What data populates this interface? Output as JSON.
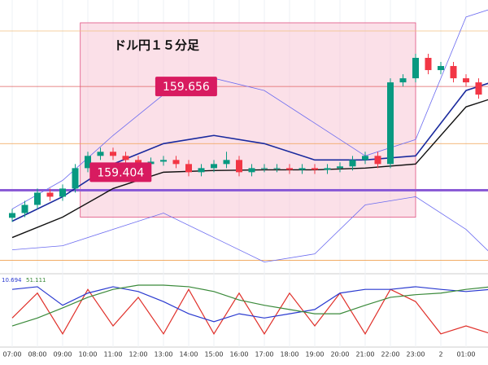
{
  "chart_data": {
    "type": "candlestick",
    "title": "ドル円１５分足",
    "categories": [
      "07:00",
      "08:00",
      "09:00",
      "10:00",
      "11:00",
      "12:00",
      "13:00",
      "14:00",
      "15:00",
      "16:00",
      "17:00",
      "18:00",
      "19:00",
      "20:00",
      "21:00",
      "22:00",
      "23:00",
      "2",
      "01:00"
    ],
    "ylim": [
      159.12,
      159.91
    ],
    "up_color": "#089981",
    "down_color": "#f23645",
    "candles": {
      "x": [
        0,
        0.5,
        1,
        1.5,
        2,
        2.5,
        3,
        3.5,
        4,
        4.5,
        5,
        5.5,
        6,
        6.5,
        7,
        7.5,
        8,
        8.5,
        9,
        9.5,
        10,
        10.5,
        11,
        11.5,
        12,
        12.5,
        13,
        13.5,
        14,
        14.5,
        15,
        15.5,
        16,
        16.5,
        17,
        17.5,
        18,
        18.5
      ],
      "open": [
        159.27,
        159.284,
        159.308,
        159.344,
        159.332,
        159.356,
        159.416,
        159.452,
        159.464,
        159.452,
        159.44,
        159.428,
        159.435,
        159.44,
        159.428,
        159.404,
        159.416,
        159.428,
        159.44,
        159.404,
        159.416,
        159.416,
        159.416,
        159.411,
        159.416,
        159.411,
        159.416,
        159.421,
        159.44,
        159.452,
        159.428,
        159.668,
        159.68,
        159.74,
        159.704,
        159.716,
        159.68,
        159.668
      ],
      "high": [
        159.296,
        159.32,
        159.356,
        159.356,
        159.368,
        159.428,
        159.464,
        159.476,
        159.476,
        159.464,
        159.452,
        159.447,
        159.452,
        159.452,
        159.44,
        159.428,
        159.44,
        159.464,
        159.452,
        159.428,
        159.428,
        159.428,
        159.428,
        159.428,
        159.428,
        159.428,
        159.433,
        159.452,
        159.464,
        159.464,
        159.68,
        159.692,
        159.752,
        159.752,
        159.728,
        159.728,
        159.692,
        159.68
      ],
      "low": [
        159.258,
        159.272,
        159.296,
        159.32,
        159.32,
        159.344,
        159.404,
        159.44,
        159.44,
        159.428,
        159.416,
        159.416,
        159.423,
        159.416,
        159.392,
        159.392,
        159.404,
        159.416,
        159.392,
        159.392,
        159.404,
        159.404,
        159.399,
        159.399,
        159.399,
        159.399,
        159.404,
        159.409,
        159.428,
        159.416,
        159.416,
        159.656,
        159.668,
        159.692,
        159.692,
        159.668,
        159.656,
        159.62
      ],
      "close": [
        159.284,
        159.308,
        159.344,
        159.332,
        159.356,
        159.416,
        159.452,
        159.464,
        159.452,
        159.44,
        159.428,
        159.435,
        159.44,
        159.428,
        159.404,
        159.416,
        159.428,
        159.44,
        159.404,
        159.416,
        159.416,
        159.416,
        159.411,
        159.416,
        159.411,
        159.416,
        159.421,
        159.44,
        159.452,
        159.428,
        159.668,
        159.68,
        159.74,
        159.704,
        159.716,
        159.68,
        159.668,
        159.632
      ]
    },
    "overlays": {
      "x": [
        0,
        2,
        4,
        6,
        8,
        10,
        12,
        14,
        16,
        18,
        19
      ],
      "series": [
        {
          "color": "#6b6bf0",
          "width": 0.8,
          "values": [
            159.296,
            159.38,
            159.512,
            159.632,
            159.68,
            159.644,
            159.548,
            159.452,
            159.5,
            159.86,
            159.884
          ]
        },
        {
          "color": "#6b6bf0",
          "width": 0.8,
          "values": [
            159.176,
            159.188,
            159.236,
            159.284,
            159.212,
            159.14,
            159.164,
            159.308,
            159.332,
            159.236,
            159.164
          ]
        },
        {
          "color": "#1a2a9e",
          "width": 1.6,
          "values": [
            159.26,
            159.332,
            159.428,
            159.488,
            159.512,
            159.488,
            159.44,
            159.44,
            159.452,
            159.644,
            159.668
          ]
        },
        {
          "color": "#111111",
          "width": 1.4,
          "values": [
            159.212,
            159.272,
            159.356,
            159.404,
            159.409,
            159.411,
            159.411,
            159.416,
            159.428,
            159.596,
            159.62
          ]
        }
      ]
    },
    "hlines": [
      {
        "value": 159.351,
        "color": "#8a5bd6",
        "width": 3
      },
      {
        "value": 159.656,
        "color": "#e06060",
        "width": 0.8
      },
      {
        "value": 159.488,
        "color": "#f0a050",
        "width": 0.8
      },
      {
        "value": 159.819,
        "color": "#f0c080",
        "width": 0.8
      },
      {
        "value": 159.145,
        "color": "#f0a050",
        "width": 0.8
      }
    ],
    "zone": {
      "x": [
        2.7,
        16
      ],
      "y": [
        159.272,
        159.843
      ],
      "color": "#f7c6d6"
    },
    "price_labels": [
      {
        "text": "159.656",
        "value": 159.656,
        "x": 6.9
      },
      {
        "text": "159.404",
        "value": 159.404,
        "x": 4.3
      }
    ],
    "oscillator": {
      "ylim": [
        0,
        100
      ],
      "labels": [
        "10.694",
        "51.111"
      ],
      "x": [
        0,
        1,
        2,
        3,
        4,
        5,
        6,
        7,
        8,
        9,
        10,
        11,
        12,
        13,
        14,
        15,
        16,
        17,
        18,
        19
      ],
      "series": [
        {
          "color": "#e0302a",
          "values": [
            38,
            85,
            8,
            92,
            23,
            77,
            8,
            92,
            8,
            85,
            8,
            85,
            23,
            85,
            8,
            92,
            69,
            8,
            23,
            8
          ]
        },
        {
          "color": "#2a3ad0",
          "values": [
            92,
            97,
            62,
            85,
            97,
            88,
            69,
            46,
            31,
            46,
            38,
            46,
            54,
            85,
            92,
            92,
            97,
            92,
            88,
            92
          ]
        },
        {
          "color": "#3a8a3a",
          "values": [
            23,
            38,
            57,
            77,
            92,
            100,
            100,
            97,
            88,
            72,
            62,
            54,
            46,
            46,
            62,
            77,
            82,
            85,
            92,
            97
          ]
        }
      ]
    }
  }
}
